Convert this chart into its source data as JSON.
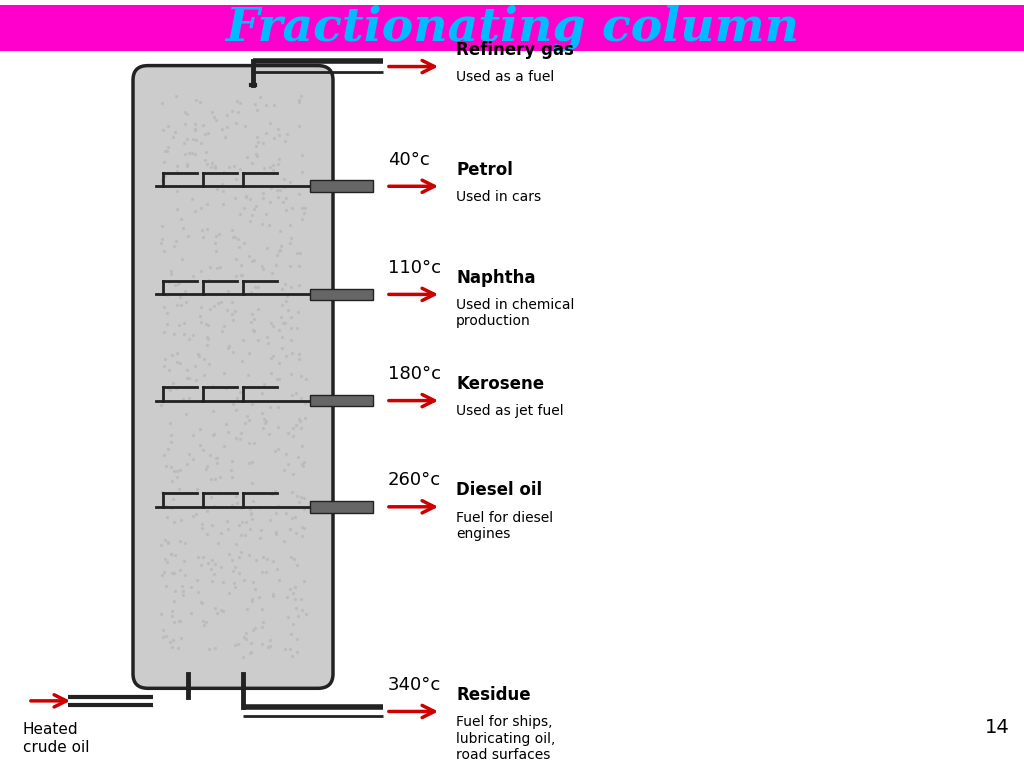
{
  "title": "Fractionating column",
  "title_color": "#00BBFF",
  "title_bg": "#FF00CC",
  "title_fontsize": 34,
  "bg_color": "#FFFFFF",
  "temps": [
    "",
    "40°c",
    "110°c",
    "180°c",
    "260°c",
    "340°c"
  ],
  "names": [
    "Refinery gas",
    "Petrol",
    "Naphtha",
    "Kerosene",
    "Diesel oil",
    "Residue"
  ],
  "uses": [
    "Used as a fuel",
    "Used in cars",
    "Used in chemical\nproduction",
    "Used as jet fuel",
    "Fuel for diesel\nengines",
    "Fuel for ships,\nlubricating oil,\nroad surfaces"
  ],
  "arrow_color": "#CC0000",
  "column_fill": "#CCCCCC",
  "column_border": "#222222",
  "tray_color": "#666666",
  "dot_color": "#AAAAAA",
  "slide_number": "14"
}
